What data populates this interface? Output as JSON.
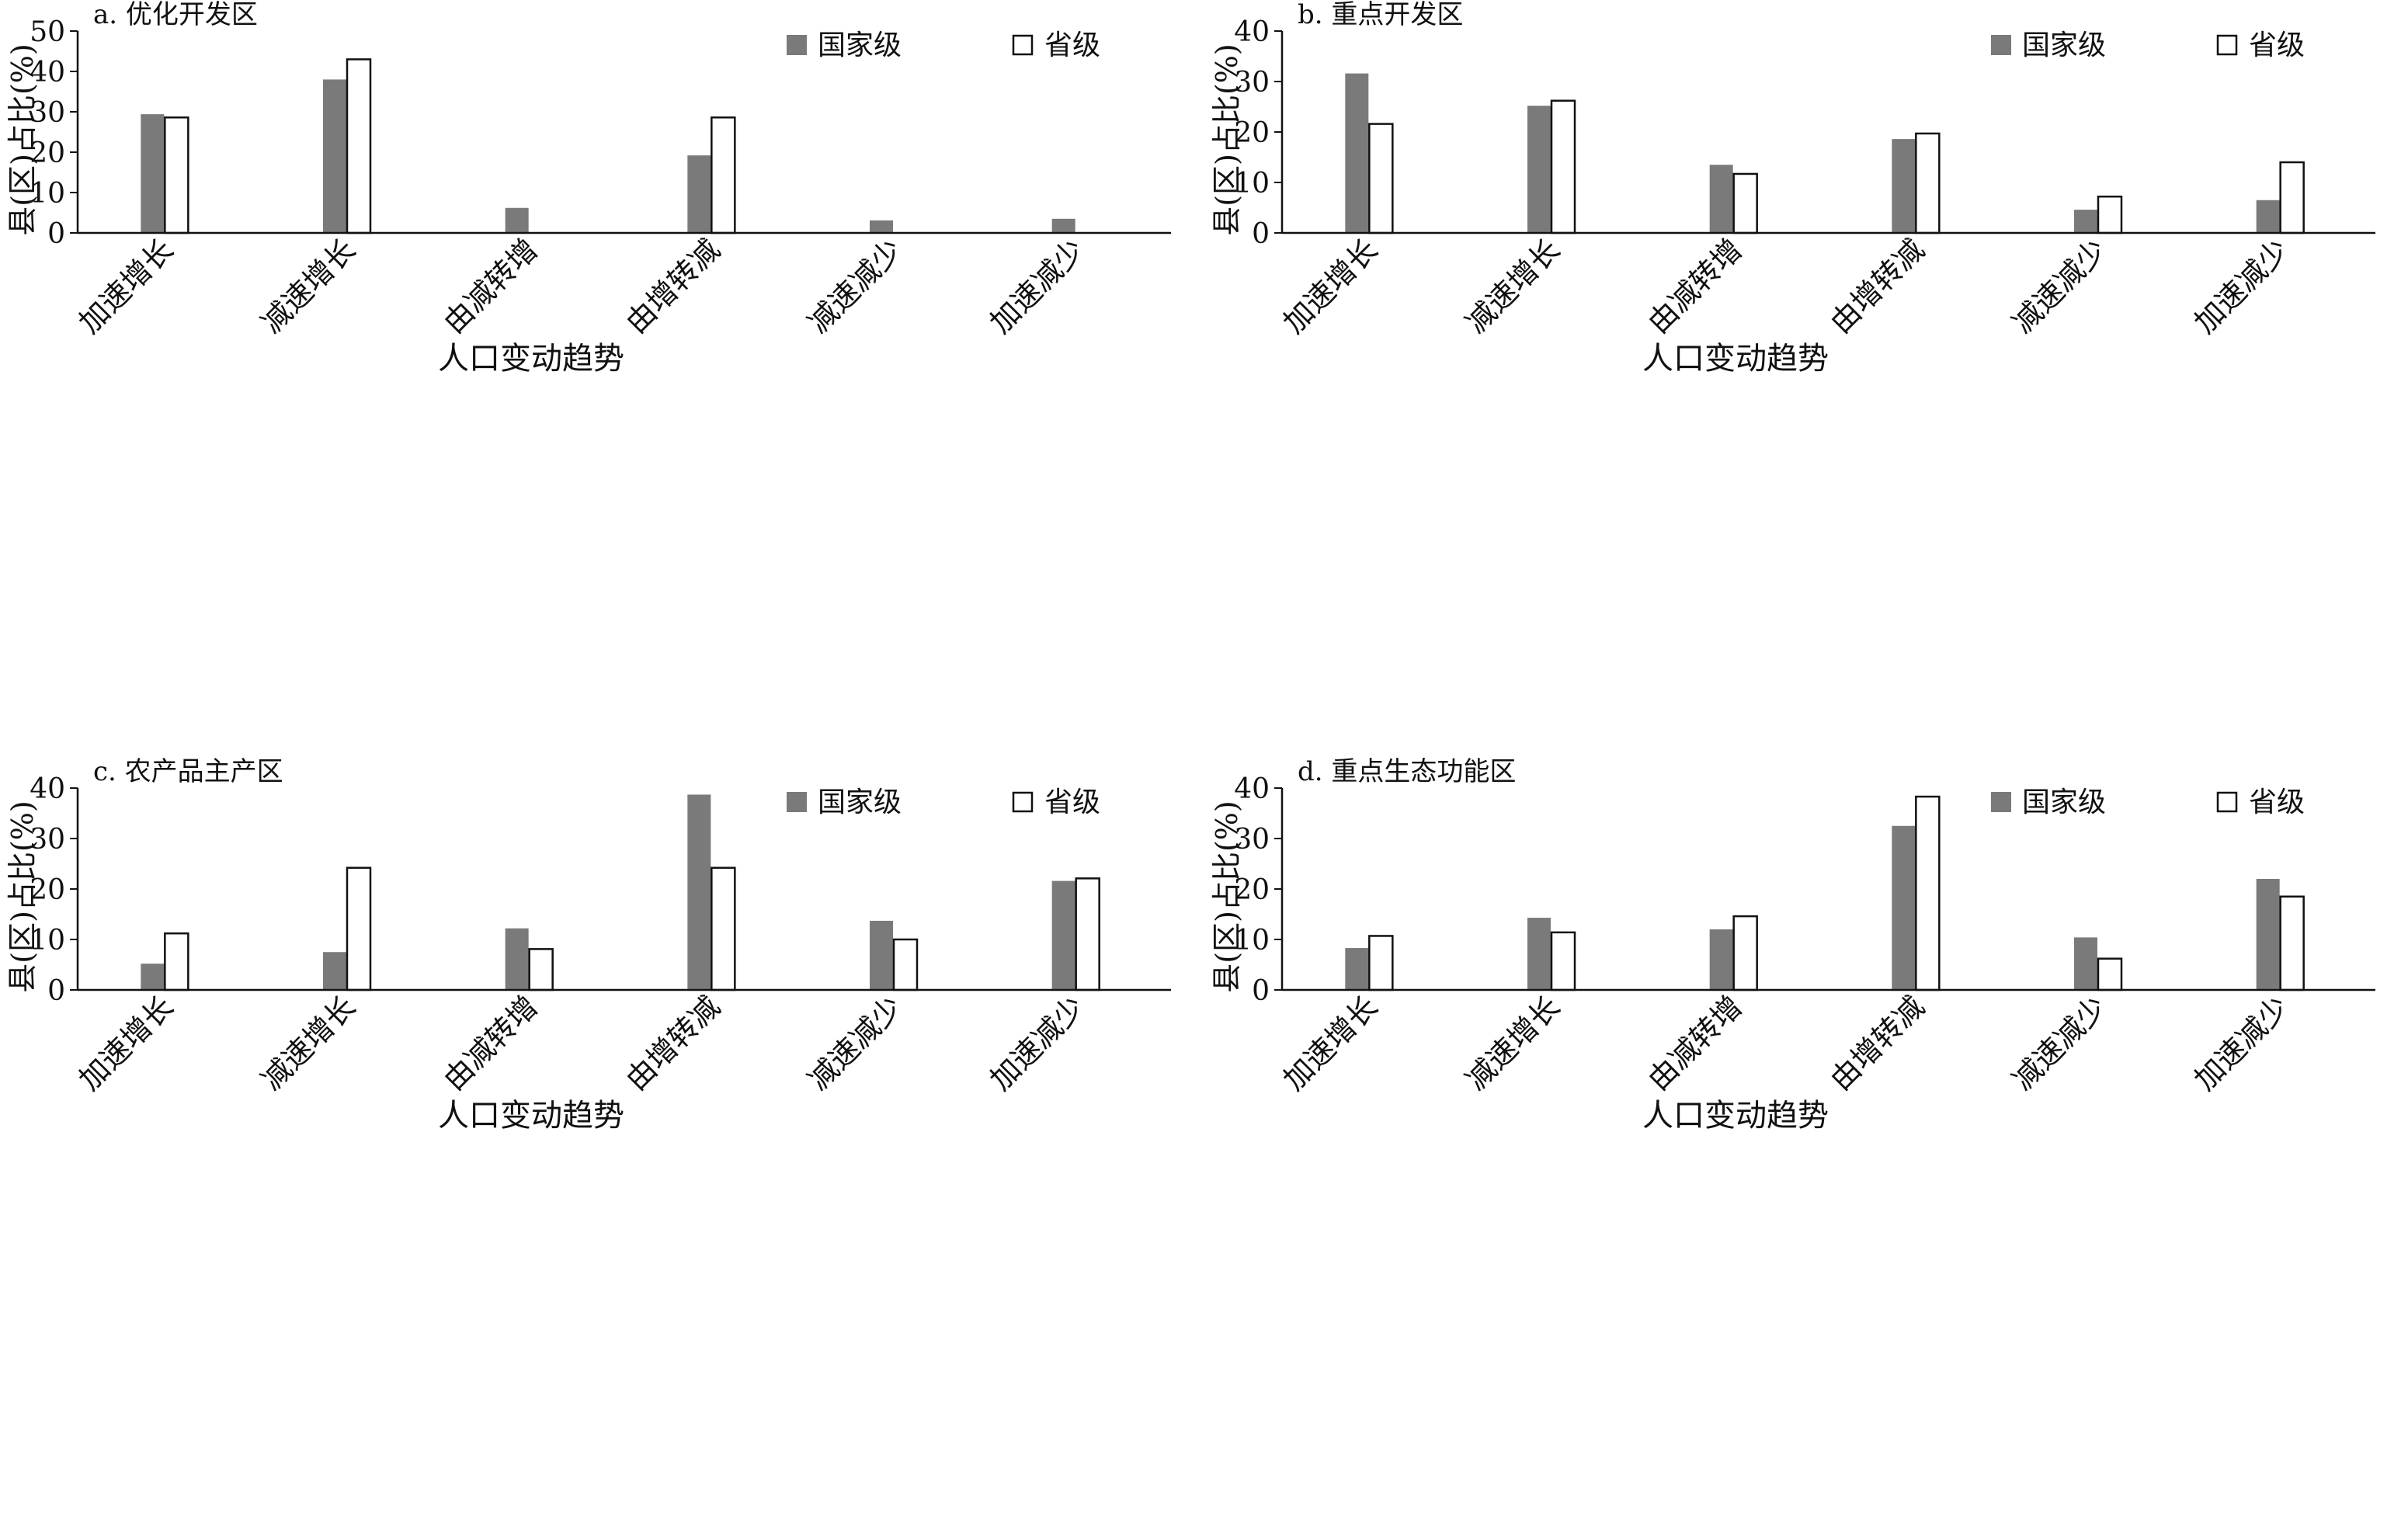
{
  "legend": {
    "national": "国家级",
    "provincial": "省级"
  },
  "colors": {
    "national": "#7a7a7a",
    "provincial": "#ffffff",
    "stroke": "#111111"
  },
  "chart_data": [
    {
      "type": "bar",
      "title": "a. 优化开发区",
      "xlabel": "人口变动趋势",
      "ylabel": "县(区)占比(%)",
      "categories": [
        "加速增长",
        "减速增长",
        "由减转增",
        "由增转减",
        "减速减少",
        "加速减少"
      ],
      "ylim": [
        0,
        50
      ],
      "yticks": [
        0,
        10,
        20,
        30,
        40,
        50
      ],
      "series": [
        {
          "name": "国家级",
          "values": [
            29.4,
            38.0,
            6.2,
            19.2,
            3.1,
            3.5
          ]
        },
        {
          "name": "省级",
          "values": [
            28.6,
            43.0,
            0,
            28.6,
            0,
            0
          ]
        }
      ]
    },
    {
      "type": "bar",
      "title": "b. 重点开发区",
      "xlabel": "人口变动趋势",
      "ylabel": "县(区)占比(%)",
      "categories": [
        "加速增长",
        "减速增长",
        "由减转增",
        "由增转减",
        "减速减少",
        "加速减少"
      ],
      "ylim": [
        0,
        40
      ],
      "yticks": [
        0,
        10,
        20,
        30,
        40
      ],
      "series": [
        {
          "name": "国家级",
          "values": [
            31.6,
            25.2,
            13.5,
            18.6,
            4.6,
            6.5
          ]
        },
        {
          "name": "省级",
          "values": [
            21.6,
            26.2,
            11.7,
            19.7,
            7.2,
            14.0
          ]
        }
      ]
    },
    {
      "type": "bar",
      "title": "c. 农产品主产区",
      "xlabel": "人口变动趋势",
      "ylabel": "县(区)占比(%)",
      "categories": [
        "加速增长",
        "减速增长",
        "由减转增",
        "由增转减",
        "减速减少",
        "加速减少"
      ],
      "ylim": [
        0,
        40
      ],
      "yticks": [
        0,
        10,
        20,
        30,
        40
      ],
      "series": [
        {
          "name": "国家级",
          "values": [
            5.2,
            7.5,
            12.2,
            38.7,
            13.7,
            21.6
          ]
        },
        {
          "name": "省级",
          "values": [
            11.2,
            24.2,
            8.1,
            24.2,
            10.0,
            22.1
          ]
        }
      ]
    },
    {
      "type": "bar",
      "title": "d. 重点生态功能区",
      "xlabel": "人口变动趋势",
      "ylabel": "县(区)占比(%)",
      "categories": [
        "加速增长",
        "减速增长",
        "由减转增",
        "由增转减",
        "减速减少",
        "加速减少"
      ],
      "ylim": [
        0,
        40
      ],
      "yticks": [
        0,
        10,
        20,
        30,
        40
      ],
      "series": [
        {
          "name": "国家级",
          "values": [
            8.3,
            14.3,
            12.0,
            32.5,
            10.4,
            22.0
          ]
        },
        {
          "name": "省级",
          "values": [
            10.7,
            11.4,
            14.6,
            38.3,
            6.2,
            18.5
          ]
        }
      ]
    }
  ]
}
